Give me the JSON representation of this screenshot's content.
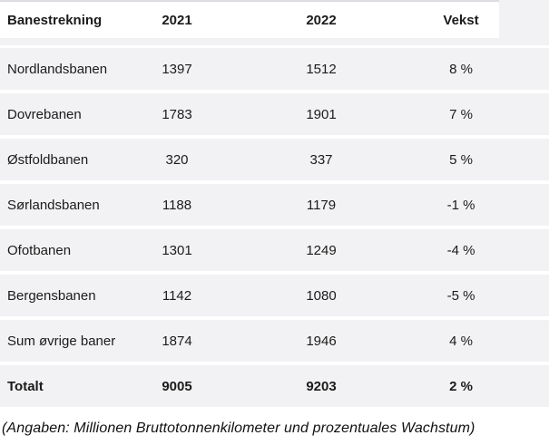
{
  "table": {
    "columns": [
      "Banestrekning",
      "2021",
      "2022",
      "Vekst"
    ],
    "rows": [
      {
        "name": "Nordlandsbanen",
        "y2021": "1397",
        "y2022": "1512",
        "vekst": "8 %"
      },
      {
        "name": "Dovrebanen",
        "y2021": "1783",
        "y2022": "1901",
        "vekst": "7 %"
      },
      {
        "name": "Østfoldbanen",
        "y2021": "320",
        "y2022": "337",
        "vekst": "5 %"
      },
      {
        "name": "Sørlandsbanen",
        "y2021": "1188",
        "y2022": "1179",
        "vekst": "-1 %"
      },
      {
        "name": "Ofotbanen",
        "y2021": "1301",
        "y2022": "1249",
        "vekst": "-4 %"
      },
      {
        "name": "Bergensbanen",
        "y2021": "1142",
        "y2022": "1080",
        "vekst": "-5 %"
      },
      {
        "name": "Sum øvrige baner",
        "y2021": "1874",
        "y2022": "1946",
        "vekst": "4 %"
      }
    ],
    "total": {
      "name": "Totalt",
      "y2021": "9005",
      "y2022": "9203",
      "vekst": "2 %"
    }
  },
  "caption": "(Angaben: Millionen Bruttotonnenkilometer und prozentuales Wachstum)",
  "colors": {
    "row_bg": "#f2f2f4",
    "header_bg": "#ffffff",
    "gap": "#ffffff",
    "top_strip": "#dcdce1",
    "text": "#1b1b1b"
  },
  "chart_data": {
    "type": "table",
    "columns": [
      "Banestrekning",
      "2021",
      "2022",
      "Vekst"
    ],
    "rows": [
      [
        "Nordlandsbanen",
        1397,
        1512,
        "8 %"
      ],
      [
        "Dovrebanen",
        1783,
        1901,
        "7 %"
      ],
      [
        "Østfoldbanen",
        320,
        337,
        "5 %"
      ],
      [
        "Sørlandsbanen",
        1188,
        1179,
        "-1 %"
      ],
      [
        "Ofotbanen",
        1301,
        1249,
        "-4 %"
      ],
      [
        "Bergensbanen",
        1142,
        1080,
        "-5 %"
      ],
      [
        "Sum øvrige baner",
        1874,
        1946,
        "4 %"
      ],
      [
        "Totalt",
        9005,
        9203,
        "2 %"
      ]
    ],
    "caption": "(Angaben: Millionen Bruttotonnenkilometer und prozentuales Wachstum)"
  }
}
